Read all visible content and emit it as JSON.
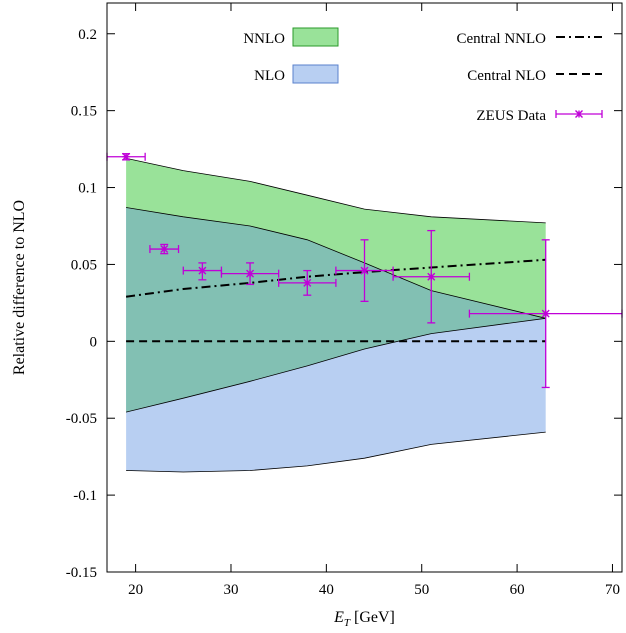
{
  "chart_data": {
    "type": "area",
    "xlabel": "E_T [GeV]",
    "xlabel_main": "E",
    "xlabel_sub": "T",
    "xlabel_rest": " [GeV]",
    "ylabel": "Relative difference to NLO",
    "xlim": [
      17,
      71
    ],
    "ylim": [
      -0.15,
      0.22
    ],
    "x_ticks": [
      20,
      30,
      40,
      50,
      60,
      70
    ],
    "y_ticks": [
      -0.15,
      -0.1,
      -0.05,
      0,
      0.05,
      0.1,
      0.15,
      0.2
    ],
    "x_tick_labels": [
      "20",
      "30",
      "40",
      "50",
      "60",
      "70"
    ],
    "y_tick_labels": [
      "-0.15",
      "-0.1",
      "-0.05",
      "0",
      "0.05",
      "0.1",
      "0.15",
      "0.2"
    ],
    "grid": false,
    "legend": [
      {
        "key": "nnlo",
        "label": "NNLO"
      },
      {
        "key": "nlo",
        "label": "NLO"
      },
      {
        "key": "central_nnlo",
        "label": "Central NNLO"
      },
      {
        "key": "central_nlo",
        "label": "Central NLO"
      },
      {
        "key": "zeus",
        "label": "ZEUS Data"
      }
    ],
    "bands": [
      {
        "key": "nnlo",
        "label": "NNLO",
        "color": "#99e299",
        "upper": [
          [
            19,
            0.119
          ],
          [
            25,
            0.111
          ],
          [
            32,
            0.104
          ],
          [
            38,
            0.095
          ],
          [
            44,
            0.086
          ],
          [
            51,
            0.081
          ],
          [
            63,
            0.077
          ]
        ],
        "lower": [
          [
            19,
            0.087
          ],
          [
            25,
            0.081
          ],
          [
            32,
            0.075
          ],
          [
            38,
            0.066
          ],
          [
            44,
            0.051
          ],
          [
            51,
            0.033
          ],
          [
            63,
            0.015
          ]
        ]
      },
      {
        "key": "nlo",
        "label": "NLO",
        "color": "#b8cff2",
        "upper": [
          [
            19,
            0.087
          ],
          [
            25,
            0.081
          ],
          [
            32,
            0.075
          ],
          [
            38,
            0.066
          ],
          [
            44,
            0.051
          ],
          [
            51,
            0.033
          ],
          [
            63,
            0.015
          ]
        ],
        "lower": [
          [
            19,
            -0.084
          ],
          [
            25,
            -0.085
          ],
          [
            32,
            -0.084
          ],
          [
            38,
            -0.081
          ],
          [
            44,
            -0.076
          ],
          [
            51,
            -0.067
          ],
          [
            63,
            -0.059
          ]
        ]
      },
      {
        "key": "overlap",
        "label": "",
        "color": "#82c0b3",
        "upper": [
          [
            19,
            0.087
          ],
          [
            25,
            0.081
          ],
          [
            32,
            0.075
          ],
          [
            38,
            0.066
          ],
          [
            44,
            0.051
          ],
          [
            51,
            0.033
          ],
          [
            63,
            0.015
          ]
        ],
        "lower": [
          [
            19,
            -0.046
          ],
          [
            25,
            -0.037
          ],
          [
            32,
            -0.026
          ],
          [
            38,
            -0.016
          ],
          [
            44,
            -0.005
          ],
          [
            51,
            0.005
          ],
          [
            63,
            0.015
          ]
        ]
      }
    ],
    "series": [
      {
        "key": "central_nnlo",
        "label": "Central NNLO",
        "style": "dash-dot",
        "color": "#000000",
        "x": [
          19,
          25,
          32,
          38,
          44,
          51,
          63
        ],
        "y": [
          0.029,
          0.034,
          0.038,
          0.042,
          0.045,
          0.048,
          0.053
        ]
      },
      {
        "key": "central_nlo",
        "label": "Central NLO",
        "style": "dashed",
        "color": "#000000",
        "x": [
          19,
          63
        ],
        "y": [
          0,
          0
        ]
      }
    ],
    "data_points": {
      "key": "zeus",
      "label": "ZEUS Data",
      "color": "#c000d8",
      "points": [
        {
          "x": 19,
          "y": 0.12,
          "xlo": 17,
          "xhi": 21,
          "ylo": 0.118,
          "yhi": 0.122
        },
        {
          "x": 23,
          "y": 0.06,
          "xlo": 21.5,
          "xhi": 24.5,
          "ylo": 0.057,
          "yhi": 0.063
        },
        {
          "x": 27,
          "y": 0.046,
          "xlo": 25,
          "xhi": 29,
          "ylo": 0.04,
          "yhi": 0.051
        },
        {
          "x": 32,
          "y": 0.044,
          "xlo": 29,
          "xhi": 35,
          "ylo": 0.037,
          "yhi": 0.051
        },
        {
          "x": 38,
          "y": 0.038,
          "xlo": 35,
          "xhi": 41,
          "ylo": 0.03,
          "yhi": 0.046
        },
        {
          "x": 44,
          "y": 0.046,
          "xlo": 41,
          "xhi": 47,
          "ylo": 0.026,
          "yhi": 0.066
        },
        {
          "x": 51,
          "y": 0.042,
          "xlo": 47,
          "xhi": 55,
          "ylo": 0.012,
          "yhi": 0.072
        },
        {
          "x": 63,
          "y": 0.018,
          "xlo": 55,
          "xhi": 71,
          "ylo": -0.03,
          "yhi": 0.066
        }
      ]
    }
  }
}
